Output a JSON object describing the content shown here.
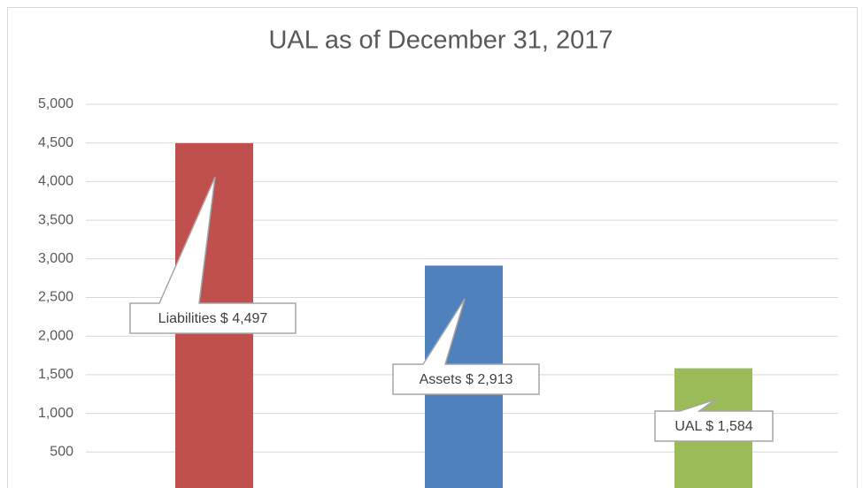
{
  "chart_data": {
    "type": "bar",
    "title": "UAL as of December 31, 2017",
    "categories": [
      null,
      null,
      null
    ],
    "values": [
      4497,
      2913,
      1584
    ],
    "value_labels": [
      "Liabilities $ 4,497",
      "Assets $ 2,913",
      "UAL $ 1,584"
    ],
    "colors": [
      "#c0504d",
      "#4f81bd",
      "#9bbb59"
    ],
    "ylim": [
      0,
      5000
    ],
    "yticks": [
      500,
      {
        "value": 1000,
        "label": "1,000"
      },
      {
        "value": 1500,
        "label": "1,500"
      },
      {
        "value": 2000,
        "label": "2,000"
      },
      {
        "value": 2500,
        "label": "2,500"
      },
      {
        "value": 3000,
        "label": "3,000"
      },
      {
        "value": 3500,
        "label": "3,500"
      },
      {
        "value": 4000,
        "label": "4,000"
      },
      {
        "value": 4500,
        "label": "4,500"
      },
      {
        "value": 5000,
        "label": "5,000"
      }
    ],
    "grid": true
  }
}
